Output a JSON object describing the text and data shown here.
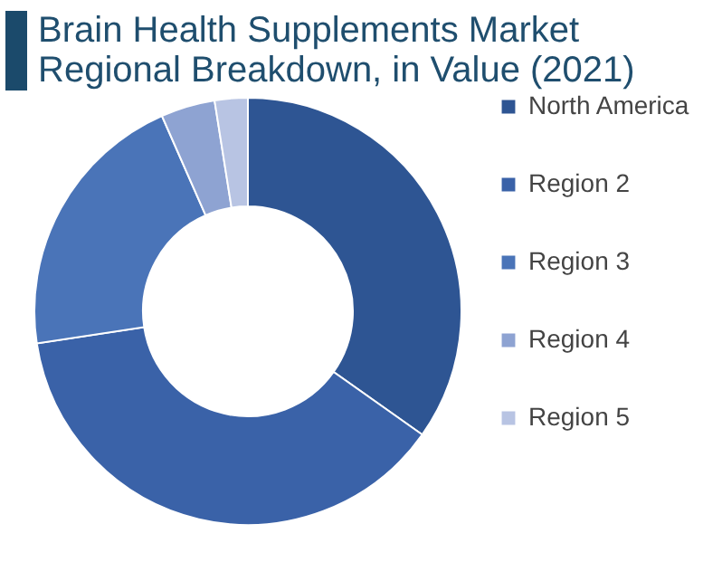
{
  "chart_data": {
    "type": "donut",
    "title": "Brain Health Supplements Market Regional Breakdown, in Value (2021)",
    "categories": [
      "North America",
      "Region 2",
      "Region 3",
      "Region 4",
      "Region 5"
    ],
    "values": [
      34.8,
      37.8,
      20.8,
      4.1,
      2.5
    ],
    "colors": [
      "#2e5593",
      "#3a62a8",
      "#4a74b8",
      "#8ea3d2",
      "#b8c4e3"
    ],
    "legend": "right"
  }
}
